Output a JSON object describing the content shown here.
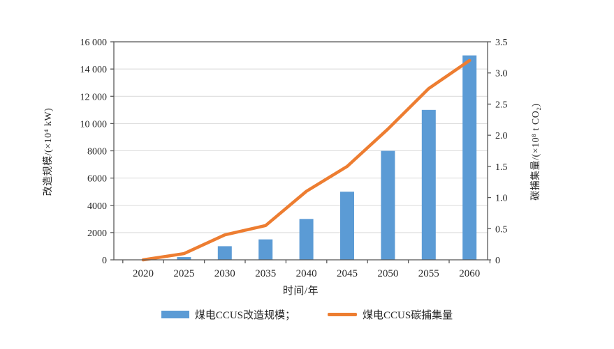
{
  "chart_data": {
    "type": "bar",
    "combo": "bar+line",
    "title": "",
    "categories": [
      "2020",
      "2025",
      "2030",
      "2035",
      "2040",
      "2045",
      "2050",
      "2055",
      "2060"
    ],
    "series": [
      {
        "name": "煤电CCUS改造规模",
        "type": "bar",
        "axis": "left",
        "color": "#5B9BD5",
        "values": [
          0,
          200,
          1000,
          1500,
          3000,
          5000,
          8000,
          11000,
          15000
        ]
      },
      {
        "name": "煤电CCUS碳捕集量",
        "type": "line",
        "axis": "right",
        "color": "#ED7D31",
        "values": [
          0,
          0.1,
          0.4,
          0.55,
          1.1,
          1.5,
          2.1,
          2.75,
          3.2
        ]
      }
    ],
    "left_axis": {
      "label": "改造规模/(×10⁴ kW)",
      "min": 0,
      "max": 16000,
      "step": 2000,
      "tick_labels": [
        "0",
        "2000",
        "4000",
        "6000",
        "8000",
        "10 000",
        "12 000",
        "14 000",
        "16 000"
      ]
    },
    "right_axis": {
      "label": "碳捕集量/(×10⁸ t CO₂)",
      "min": 0,
      "max": 3.5,
      "step": 0.5,
      "tick_labels": [
        "0",
        "0.5",
        "1.0",
        "1.5",
        "2.0",
        "2.5",
        "3.0",
        "3.5"
      ]
    },
    "x_axis": {
      "label": "时间/年"
    },
    "grid": "horizontal-on",
    "legend": {
      "position": "bottom",
      "items": [
        {
          "label": "煤电CCUS改造规模；",
          "swatch": "bar",
          "color": "#5B9BD5"
        },
        {
          "label": "煤电CCUS碳捕集量",
          "swatch": "line",
          "color": "#ED7D31"
        }
      ]
    },
    "colors": {
      "bar": "#5B9BD5",
      "line": "#ED7D31",
      "grid": "#D9D9D9",
      "frame": "#595959",
      "text": "#262626"
    }
  }
}
